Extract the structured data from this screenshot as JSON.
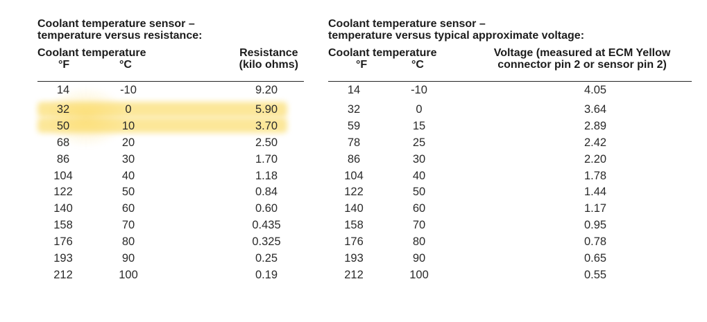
{
  "left_table": {
    "title_line1": "Coolant temperature sensor –",
    "title_line2": "temperature versus resistance:",
    "group_header": "Coolant temperature",
    "col_f": "°F",
    "col_c": "°C",
    "col_value_line1": "Resistance",
    "col_value_line2": "(kilo ohms)",
    "rows": [
      {
        "f": "14",
        "c": "-10",
        "v": "9.20"
      },
      {
        "f": "32",
        "c": "0",
        "v": "5.90"
      },
      {
        "f": "50",
        "c": "10",
        "v": "3.70"
      },
      {
        "f": "68",
        "c": "20",
        "v": "2.50"
      },
      {
        "f": "86",
        "c": "30",
        "v": "1.70"
      },
      {
        "f": "104",
        "c": "40",
        "v": "1.18"
      },
      {
        "f": "122",
        "c": "50",
        "v": "0.84"
      },
      {
        "f": "140",
        "c": "60",
        "v": "0.60"
      },
      {
        "f": "158",
        "c": "70",
        "v": "0.435"
      },
      {
        "f": "176",
        "c": "80",
        "v": "0.325"
      },
      {
        "f": "193",
        "c": "90",
        "v": "0.25"
      },
      {
        "f": "212",
        "c": "100",
        "v": "0.19"
      }
    ],
    "highlight_color": "#f9d54a"
  },
  "right_table": {
    "title_line1": "Coolant temperature sensor –",
    "title_line2": "temperature versus typical approximate voltage:",
    "group_header": "Coolant temperature",
    "col_f": "°F",
    "col_c": "°C",
    "col_value_line1": "Voltage (measured at ECM Yellow",
    "col_value_line2": "connector pin 2 or sensor pin 2)",
    "rows": [
      {
        "f": "14",
        "c": "-10",
        "v": "4.05"
      },
      {
        "f": "32",
        "c": "0",
        "v": "3.64"
      },
      {
        "f": "59",
        "c": "15",
        "v": "2.89"
      },
      {
        "f": "78",
        "c": "25",
        "v": "2.42"
      },
      {
        "f": "86",
        "c": "30",
        "v": "2.20"
      },
      {
        "f": "104",
        "c": "40",
        "v": "1.78"
      },
      {
        "f": "122",
        "c": "50",
        "v": "1.44"
      },
      {
        "f": "140",
        "c": "60",
        "v": "1.17"
      },
      {
        "f": "158",
        "c": "70",
        "v": "0.95"
      },
      {
        "f": "176",
        "c": "80",
        "v": "0.78"
      },
      {
        "f": "193",
        "c": "90",
        "v": "0.65"
      },
      {
        "f": "212",
        "c": "100",
        "v": "0.55"
      }
    ]
  }
}
